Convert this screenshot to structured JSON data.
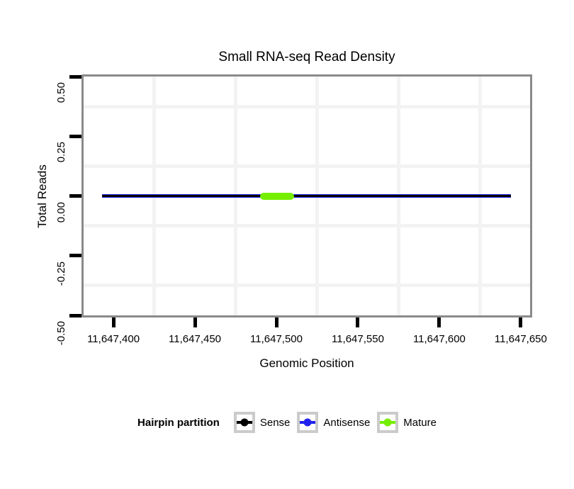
{
  "chart_data": {
    "type": "line",
    "title": "Small RNA-seq Read Density",
    "xlabel": "Genomic Position",
    "ylabel": "Total Reads",
    "xlim": [
      11647381.7,
      11647655.7
    ],
    "ylim": [
      -0.5,
      0.5
    ],
    "grid": true,
    "panel_border_color": "#8a8a8a",
    "gridline_color": "#f3f3f3",
    "x_ticks": [
      {
        "value": 11647400,
        "label": "11,647,400"
      },
      {
        "value": 11647450,
        "label": "11,647,450"
      },
      {
        "value": 11647500,
        "label": "11,647,500"
      },
      {
        "value": 11647550,
        "label": "11,647,550"
      },
      {
        "value": 11647600,
        "label": "11,647,600"
      },
      {
        "value": 11647650,
        "label": "11,647,650"
      }
    ],
    "y_ticks": [
      {
        "value": 0.5,
        "label": "0.50"
      },
      {
        "value": 0.25,
        "label": "0.25"
      },
      {
        "value": 0.0,
        "label": "0.00"
      },
      {
        "value": -0.25,
        "label": "-0.25"
      },
      {
        "value": -0.5,
        "label": "-0.50"
      }
    ],
    "x_minor_gridlines": [
      11647425,
      11647475,
      11647525,
      11647575,
      11647625
    ],
    "y_minor_gridlines": [
      0.375,
      0.125,
      -0.125,
      -0.375
    ],
    "series": [
      {
        "name": "Antisense",
        "color": "#2222EE",
        "y": 0,
        "x_start": 11647393,
        "x_end": 11647644,
        "thickness_px": 5,
        "rounded": false
      },
      {
        "name": "Sense",
        "color": "#000000",
        "y": 0,
        "x_start": 11647393,
        "x_end": 11647644,
        "thickness_px": 3,
        "rounded": false
      },
      {
        "name": "Mature",
        "color": "#76EE00",
        "y": 0,
        "x_start": 11647490,
        "x_end": 11647511,
        "thickness_px": 10,
        "rounded": true
      }
    ],
    "legend": {
      "title": "Hairpin partition",
      "position": "bottom",
      "entries": [
        {
          "label": "Sense",
          "color": "#000000"
        },
        {
          "label": "Antisense",
          "color": "#2222EE"
        },
        {
          "label": "Mature",
          "color": "#76EE00"
        }
      ]
    }
  }
}
